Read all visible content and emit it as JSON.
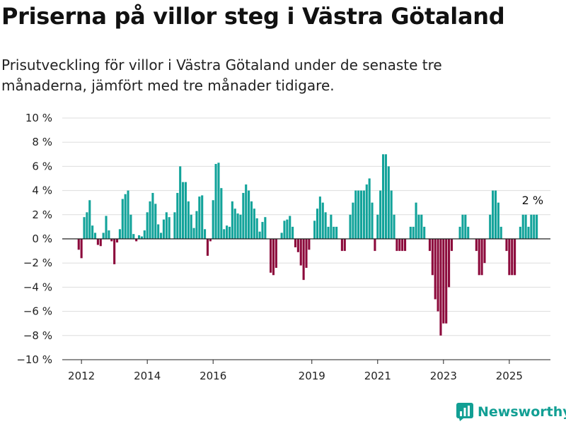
{
  "title": "Priserna på villor steg i Västra Götaland",
  "subtitle": "Prisutveckling för villor i Västra Götaland under de senaste tre månaderna, jämfört med tre månader tidigare.",
  "brand": {
    "name": "Newsworthy",
    "icon": "bar-chart-logo-icon"
  },
  "colors": {
    "positive": "#12a39a",
    "negative": "#8c0a3c",
    "grid": "#dddddd",
    "zero_line": "#222222",
    "brand": "#129f94"
  },
  "chart_data": {
    "type": "bar",
    "title": "",
    "xlabel": "",
    "ylabel": "",
    "ylim": [
      -10,
      10
    ],
    "yticks": [
      -10,
      -8,
      -6,
      -4,
      -2,
      0,
      2,
      4,
      6,
      8,
      10
    ],
    "ytick_labels": [
      "−10 %",
      "−8 %",
      "−6 %",
      "−4 %",
      "−2 %",
      "0 %",
      "2 %",
      "4 %",
      "6 %",
      "8 %",
      "10 %"
    ],
    "xlim": [
      "2011-06",
      "2026-04"
    ],
    "xticks": [
      {
        "date": "2012-01",
        "label": "2012"
      },
      {
        "date": "2014-01",
        "label": "2014"
      },
      {
        "date": "2016-01",
        "label": "2016"
      },
      {
        "date": "2019-01",
        "label": "2019"
      },
      {
        "date": "2021-01",
        "label": "2021"
      },
      {
        "date": "2023-01",
        "label": "2023"
      },
      {
        "date": "2025-01",
        "label": "2025"
      }
    ],
    "grid": true,
    "annotation": {
      "date": "2025-09",
      "text": "2 %"
    },
    "series": [
      {
        "start": "2011-12",
        "values": [
          -0.9,
          -1.6,
          1.8,
          2.2,
          3.2,
          1.1,
          0.5,
          -0.5,
          -0.6,
          0.5,
          1.9,
          0.7,
          -0.2,
          -2.1,
          -0.3,
          0.8,
          3.3,
          3.7,
          4.0,
          2.0,
          0.4,
          -0.2,
          0.3,
          0.2,
          0.7,
          2.2,
          3.1,
          3.8,
          2.9,
          1.2,
          0.5,
          1.6,
          2.2,
          1.8,
          0,
          2.2,
          3.8,
          6.0,
          4.7,
          4.7,
          3.1,
          2.0,
          0.9,
          2.3,
          3.5,
          3.6,
          0.8,
          -1.4,
          -0.2,
          3.2,
          6.2,
          6.3,
          4.2,
          0.8,
          1.1,
          1.0,
          3.1,
          2.5,
          2.1,
          2.0,
          3.8,
          4.5,
          4.0,
          3.1,
          2.5,
          1.7,
          0.6,
          1.4,
          1.8,
          0,
          -2.8,
          -3.0,
          -2.4,
          0,
          0.5,
          1.5,
          1.6,
          1.9,
          1.0,
          -0.7,
          -1.1,
          -2.2,
          -3.4,
          -2.4,
          -0.9,
          0,
          1.5,
          2.5,
          3.5,
          3.0,
          2.2,
          1.0,
          2.0,
          1.0,
          1.0,
          0,
          -1.0,
          -1.0,
          0,
          2.0,
          3.0,
          4.0,
          4.0,
          4.0,
          4.0,
          4.5,
          5.0,
          3.0,
          -1.0,
          2.0,
          4.0,
          7.0,
          7.0,
          6.0,
          4.0,
          2.0,
          -1.0,
          -1.0,
          -1.0,
          -1.0,
          0,
          1.0,
          1.0,
          3.0,
          2.0,
          2.0,
          1.0,
          0,
          -1.0,
          -3.0,
          -5.0,
          -6.0,
          -8.0,
          -7.0,
          -7.0,
          -4.0,
          -1.0,
          0,
          0,
          1.0,
          2.0,
          2.0,
          1.0,
          0,
          0,
          -1.0,
          -3.0,
          -3.0,
          -2.0,
          0,
          2.0,
          4.0,
          4.0,
          3.0,
          1.0,
          0,
          -1.0,
          -3.0,
          -3.0,
          -3.0,
          0,
          1.0,
          2.0,
          2.0,
          1.0,
          2.0,
          2.0,
          2.0
        ]
      }
    ]
  }
}
